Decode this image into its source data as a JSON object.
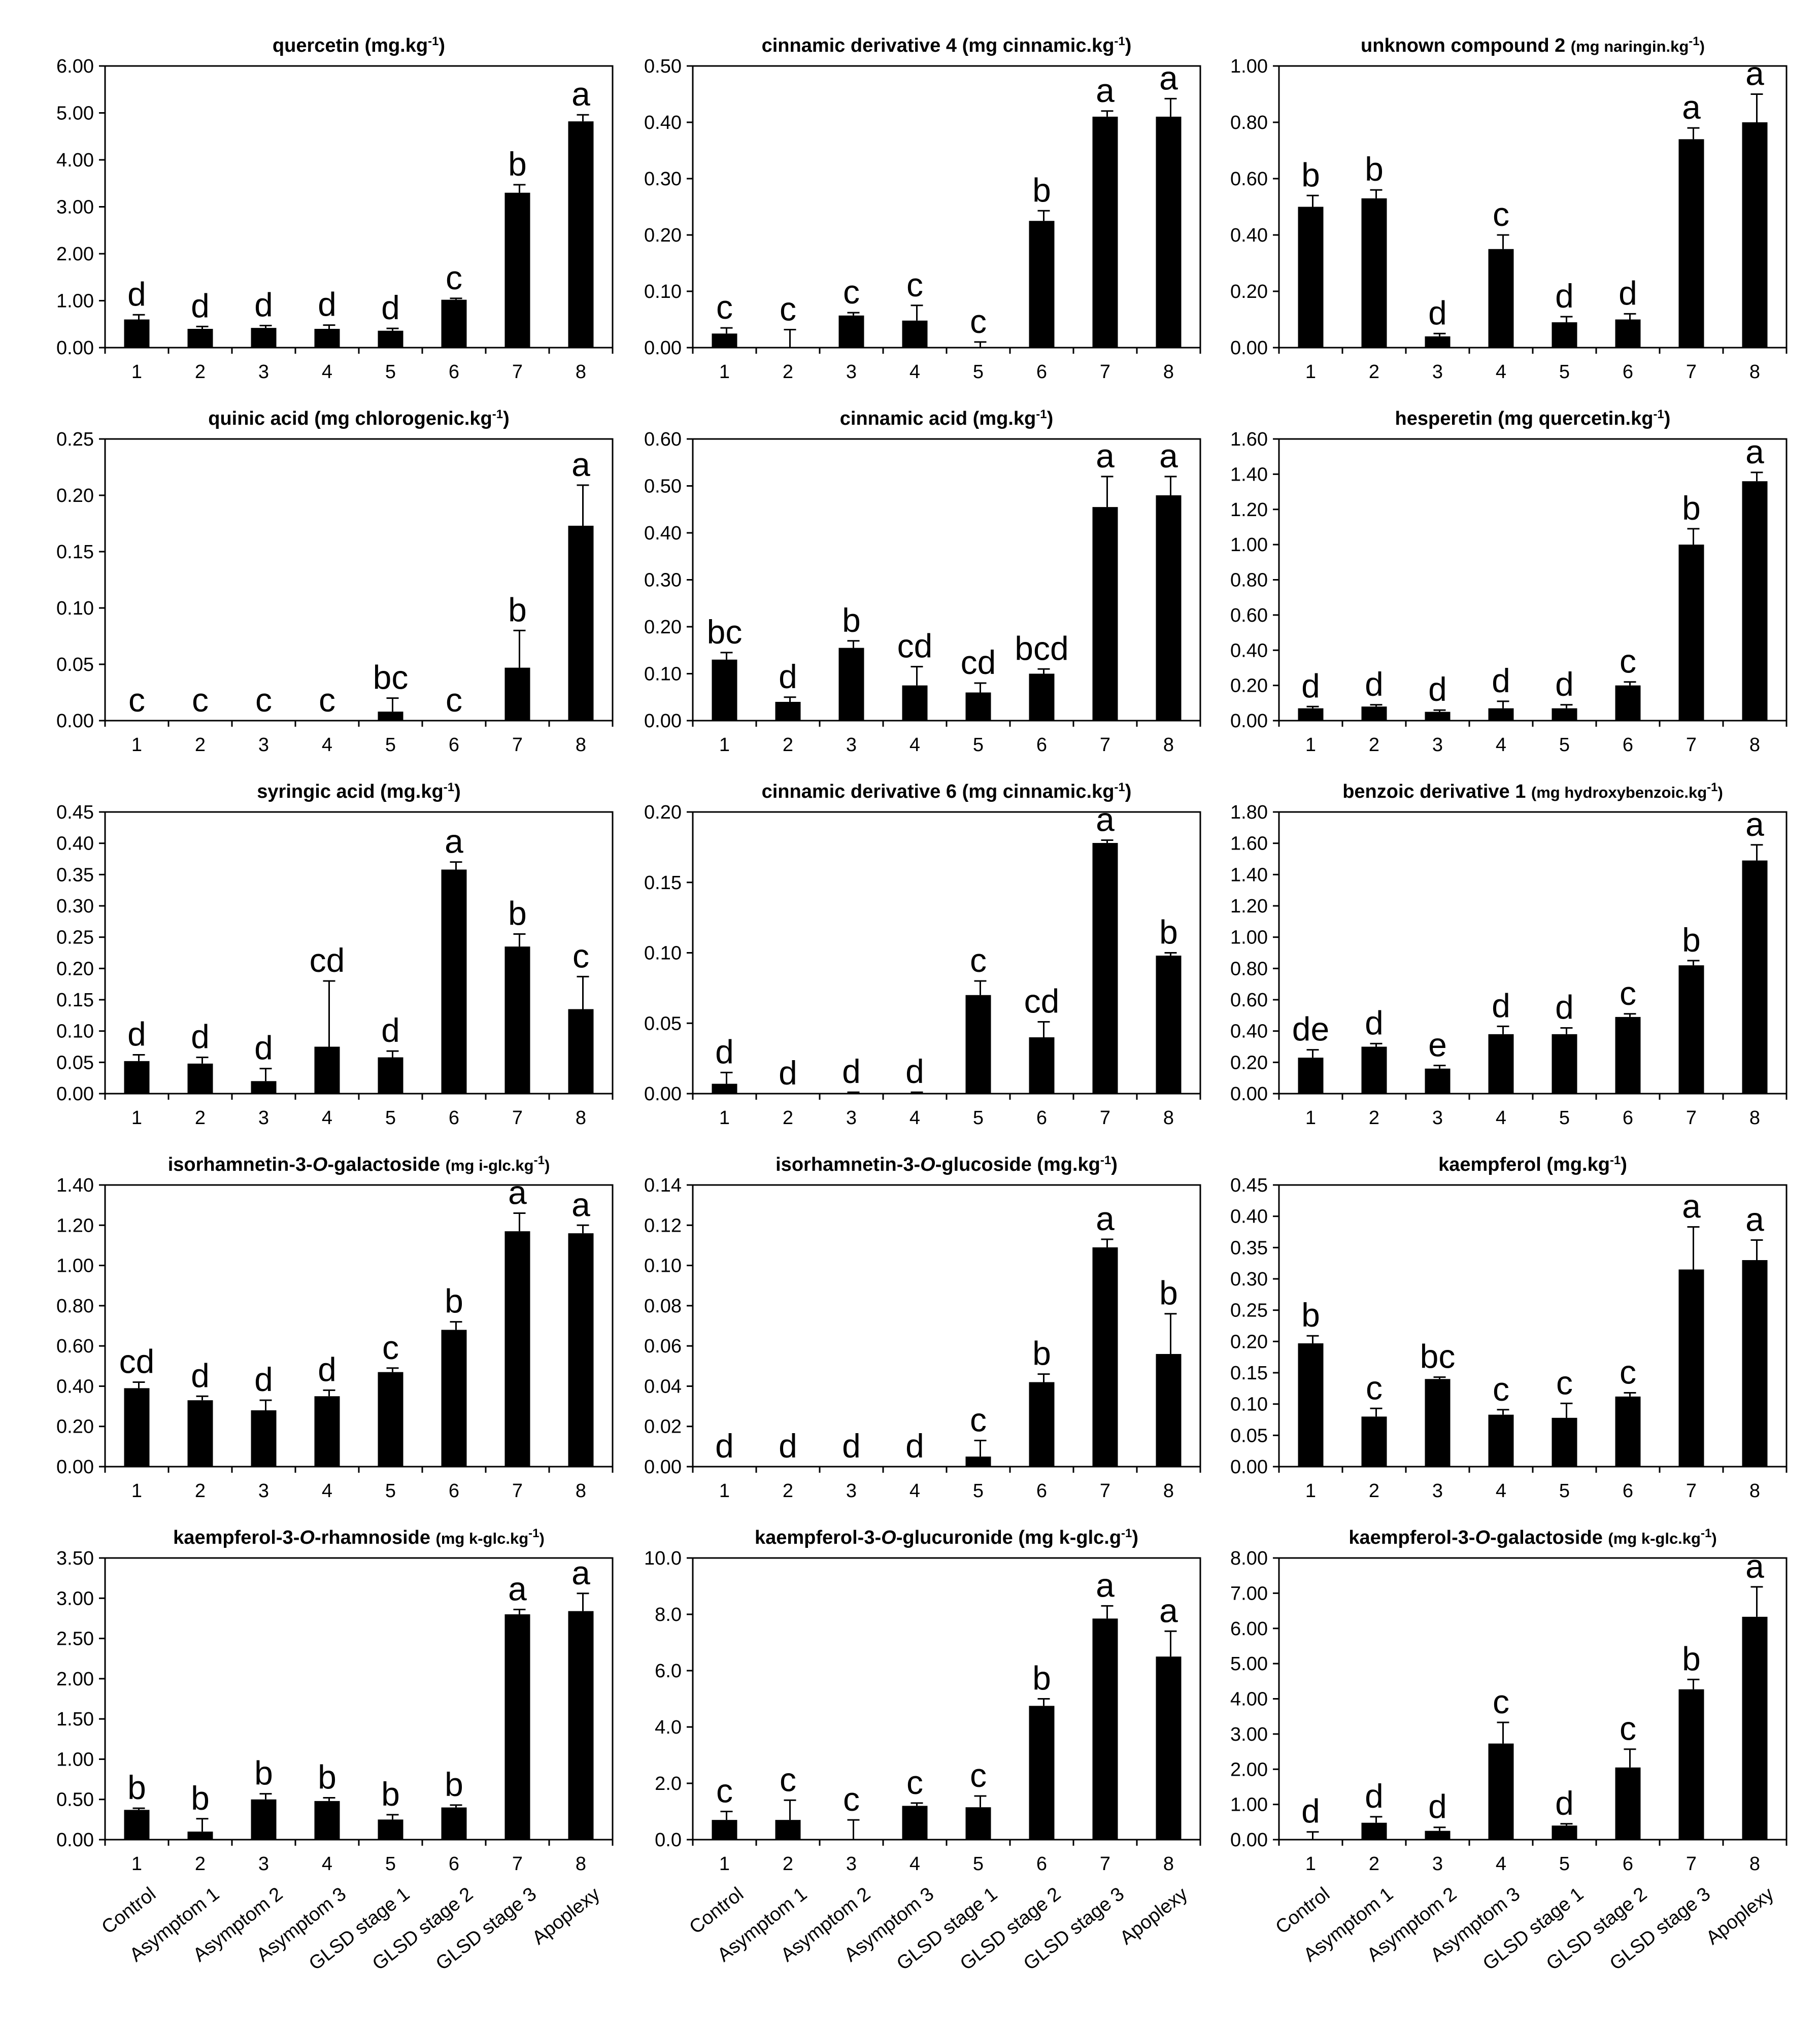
{
  "figure": {
    "group_labels": [
      "Control",
      "Asymptom 1",
      "Asymptom 2",
      "Asymptom 3",
      "GLSD stage 1",
      "GLSD stage 2",
      "GLSD stage 3",
      "Apoplexy"
    ]
  },
  "chart_data": [
    {
      "type": "bar",
      "title": "quercetin",
      "unit": "(mg.kg-1)",
      "categories": [
        "1",
        "2",
        "3",
        "4",
        "5",
        "6",
        "7",
        "8"
      ],
      "values": [
        0.6,
        0.4,
        0.42,
        0.4,
        0.36,
        1.02,
        3.3,
        4.82
      ],
      "errors": [
        0.1,
        0.05,
        0.05,
        0.08,
        0.05,
        0.03,
        0.17,
        0.14
      ],
      "letters": [
        "d",
        "d",
        "d",
        "d",
        "d",
        "c",
        "b",
        "a"
      ],
      "yticks": [
        "0.00",
        "1.00",
        "2.00",
        "3.00",
        "4.00",
        "5.00",
        "6.00"
      ],
      "ylim": [
        0,
        6
      ]
    },
    {
      "type": "bar",
      "title": "cinnamic derivative 4",
      "unit": "(mg cinnamic.kg-1)",
      "categories": [
        "1",
        "2",
        "3",
        "4",
        "5",
        "6",
        "7",
        "8"
      ],
      "values": [
        0.025,
        0.0,
        0.057,
        0.048,
        0.0,
        0.225,
        0.41,
        0.41
      ],
      "errors": [
        0.01,
        0.032,
        0.005,
        0.027,
        0.01,
        0.018,
        0.01,
        0.032
      ],
      "letters": [
        "c",
        "c",
        "c",
        "c",
        "c",
        "b",
        "a",
        "a"
      ],
      "yticks": [
        "0.00",
        "0.10",
        "0.20",
        "0.30",
        "0.40",
        "0.50"
      ],
      "ylim": [
        0,
        0.5
      ]
    },
    {
      "type": "bar",
      "title": "unknown compound 2",
      "unit": "(mg naringin.kg-1)",
      "unit_small": true,
      "categories": [
        "1",
        "2",
        "3",
        "4",
        "5",
        "6",
        "7",
        "8"
      ],
      "values": [
        0.5,
        0.53,
        0.04,
        0.35,
        0.09,
        0.1,
        0.74,
        0.8
      ],
      "errors": [
        0.04,
        0.03,
        0.01,
        0.05,
        0.02,
        0.02,
        0.04,
        0.1
      ],
      "letters": [
        "b",
        "b",
        "d",
        "c",
        "d",
        "d",
        "a",
        "a"
      ],
      "yticks": [
        "0.00",
        "0.20",
        "0.40",
        "0.60",
        "0.80",
        "1.00"
      ],
      "ylim": [
        0,
        1
      ]
    },
    {
      "type": "bar",
      "title": "quinic acid",
      "unit": "(mg chlorogenic.kg-1)",
      "categories": [
        "1",
        "2",
        "3",
        "4",
        "5",
        "6",
        "7",
        "8"
      ],
      "values": [
        0,
        0,
        0,
        0,
        0.008,
        0,
        0.047,
        0.173
      ],
      "errors": [
        0,
        0,
        0,
        0,
        0.012,
        0,
        0.033,
        0.036
      ],
      "letters": [
        "c",
        "c",
        "c",
        "c",
        "bc",
        "c",
        "b",
        "a"
      ],
      "yticks": [
        "0.00",
        "0.05",
        "0.10",
        "0.15",
        "0.20",
        "0.25"
      ],
      "ylim": [
        0,
        0.25
      ]
    },
    {
      "type": "bar",
      "title": "cinnamic acid",
      "unit": "(mg.kg-1)",
      "categories": [
        "1",
        "2",
        "3",
        "4",
        "5",
        "6",
        "7",
        "8"
      ],
      "values": [
        0.13,
        0.04,
        0.155,
        0.075,
        0.06,
        0.1,
        0.455,
        0.48
      ],
      "errors": [
        0.015,
        0.01,
        0.015,
        0.04,
        0.02,
        0.01,
        0.065,
        0.04
      ],
      "letters": [
        "bc",
        "d",
        "b",
        "cd",
        "cd",
        "bcd",
        "a",
        "a"
      ],
      "yticks": [
        "0.00",
        "0.10",
        "0.20",
        "0.30",
        "0.40",
        "0.50",
        "0.60"
      ],
      "ylim": [
        0,
        0.6
      ]
    },
    {
      "type": "bar",
      "title": "hesperetin",
      "unit": "(mg quercetin.kg-1)",
      "categories": [
        "1",
        "2",
        "3",
        "4",
        "5",
        "6",
        "7",
        "8"
      ],
      "values": [
        0.07,
        0.08,
        0.05,
        0.07,
        0.07,
        0.2,
        1.0,
        1.36
      ],
      "errors": [
        0.01,
        0.01,
        0.01,
        0.04,
        0.02,
        0.02,
        0.09,
        0.05
      ],
      "letters": [
        "d",
        "d",
        "d",
        "d",
        "d",
        "c",
        "b",
        "a"
      ],
      "yticks": [
        "0.00",
        "0.20",
        "0.40",
        "0.60",
        "0.80",
        "1.00",
        "1.20",
        "1.40",
        "1.60"
      ],
      "ylim": [
        0,
        1.6
      ]
    },
    {
      "type": "bar",
      "title": "syringic acid",
      "unit": "(mg.kg-1)",
      "categories": [
        "1",
        "2",
        "3",
        "4",
        "5",
        "6",
        "7",
        "8"
      ],
      "values": [
        0.052,
        0.048,
        0.02,
        0.075,
        0.058,
        0.358,
        0.235,
        0.135
      ],
      "errors": [
        0.01,
        0.01,
        0.02,
        0.105,
        0.01,
        0.012,
        0.02,
        0.052
      ],
      "letters": [
        "d",
        "d",
        "d",
        "cd",
        "d",
        "a",
        "b",
        "c"
      ],
      "yticks": [
        "0.00",
        "0.05",
        "0.10",
        "0.15",
        "0.20",
        "0.25",
        "0.30",
        "0.35",
        "0.40",
        "0.45"
      ],
      "ylim": [
        0,
        0.45
      ]
    },
    {
      "type": "bar",
      "title": "cinnamic derivative 6",
      "unit": "(mg cinnamic.kg-1)",
      "categories": [
        "1",
        "2",
        "3",
        "4",
        "5",
        "6",
        "7",
        "8"
      ],
      "values": [
        0.007,
        0.0,
        0.0,
        0.0,
        0.07,
        0.04,
        0.178,
        0.098
      ],
      "errors": [
        0.008,
        0.0,
        0.001,
        0.001,
        0.01,
        0.011,
        0.002,
        0.002
      ],
      "letters": [
        "d",
        "d",
        "d",
        "d",
        "c",
        "cd",
        "a",
        "b"
      ],
      "yticks": [
        "0.00",
        "0.05",
        "0.10",
        "0.15",
        "0.20"
      ],
      "ylim": [
        0,
        0.2
      ]
    },
    {
      "type": "bar",
      "title": "benzoic derivative 1",
      "unit": "(mg hydroxybenzoic.kg-1)",
      "unit_small": true,
      "categories": [
        "1",
        "2",
        "3",
        "4",
        "5",
        "6",
        "7",
        "8"
      ],
      "values": [
        0.23,
        0.3,
        0.16,
        0.38,
        0.38,
        0.49,
        0.82,
        1.49
      ],
      "errors": [
        0.05,
        0.02,
        0.02,
        0.05,
        0.04,
        0.02,
        0.03,
        0.1
      ],
      "letters": [
        "de",
        "d",
        "e",
        "d",
        "d",
        "c",
        "b",
        "a"
      ],
      "yticks": [
        "0.00",
        "0.20",
        "0.40",
        "0.60",
        "0.80",
        "1.00",
        "1.20",
        "1.40",
        "1.60",
        "1.80"
      ],
      "ylim": [
        0,
        1.8
      ]
    },
    {
      "type": "bar",
      "title": "isorhamnetin-3-O-galactoside",
      "title_parts": [
        "isorhamnetin-3-",
        "O",
        "-galactoside"
      ],
      "unit": "(mg i-glc.kg-1)",
      "unit_small": true,
      "categories": [
        "1",
        "2",
        "3",
        "4",
        "5",
        "6",
        "7",
        "8"
      ],
      "values": [
        0.39,
        0.33,
        0.28,
        0.35,
        0.47,
        0.68,
        1.17,
        1.16
      ],
      "errors": [
        0.03,
        0.02,
        0.05,
        0.03,
        0.02,
        0.04,
        0.09,
        0.04
      ],
      "letters": [
        "cd",
        "d",
        "d",
        "d",
        "c",
        "b",
        "a",
        "a"
      ],
      "yticks": [
        "0.00",
        "0.20",
        "0.40",
        "0.60",
        "0.80",
        "1.00",
        "1.20",
        "1.40"
      ],
      "ylim": [
        0,
        1.4
      ]
    },
    {
      "type": "bar",
      "title": "isorhamnetin-3-O-glucoside",
      "title_parts": [
        "isorhamnetin-3-",
        "O",
        "-glucoside"
      ],
      "unit": "(mg.kg-1)",
      "categories": [
        "1",
        "2",
        "3",
        "4",
        "5",
        "6",
        "7",
        "8"
      ],
      "values": [
        0,
        0,
        0,
        0,
        0.005,
        0.042,
        0.109,
        0.056
      ],
      "errors": [
        0,
        0,
        0,
        0,
        0.008,
        0.004,
        0.004,
        0.02
      ],
      "letters": [
        "d",
        "d",
        "d",
        "d",
        "c",
        "b",
        "a",
        "b"
      ],
      "yticks": [
        "0.00",
        "0.02",
        "0.04",
        "0.06",
        "0.08",
        "0.10",
        "0.12",
        "0.14"
      ],
      "ylim": [
        0,
        0.14
      ]
    },
    {
      "type": "bar",
      "title": "kaempferol",
      "unit": "(mg.kg-1)",
      "categories": [
        "1",
        "2",
        "3",
        "4",
        "5",
        "6",
        "7",
        "8"
      ],
      "values": [
        0.197,
        0.08,
        0.14,
        0.083,
        0.078,
        0.112,
        0.315,
        0.33
      ],
      "errors": [
        0.012,
        0.013,
        0.003,
        0.008,
        0.023,
        0.006,
        0.068,
        0.032
      ],
      "letters": [
        "b",
        "c",
        "bc",
        "c",
        "c",
        "c",
        "a",
        "a"
      ],
      "yticks": [
        "0.00",
        "0.05",
        "0.10",
        "0.15",
        "0.20",
        "0.25",
        "0.30",
        "0.35",
        "0.40",
        "0.45"
      ],
      "ylim": [
        0,
        0.45
      ]
    },
    {
      "type": "bar",
      "title": "kaempferol-3-O-rhamnoside",
      "title_parts": [
        "kaempferol-3-",
        "O",
        "-rhamnoside"
      ],
      "unit": "(mg k-glc.kg-1)",
      "unit_small": true,
      "categories": [
        "1",
        "2",
        "3",
        "4",
        "5",
        "6",
        "7",
        "8"
      ],
      "values": [
        0.37,
        0.1,
        0.5,
        0.48,
        0.25,
        0.4,
        2.8,
        2.84
      ],
      "errors": [
        0.02,
        0.16,
        0.07,
        0.04,
        0.06,
        0.03,
        0.06,
        0.22
      ],
      "letters": [
        "b",
        "b",
        "b",
        "b",
        "b",
        "b",
        "a",
        "a"
      ],
      "yticks": [
        "0.00",
        "0.50",
        "1.00",
        "1.50",
        "2.00",
        "2.50",
        "3.00",
        "3.50"
      ],
      "ylim": [
        0,
        3.5
      ]
    },
    {
      "type": "bar",
      "title": "kaempferol-3-O-glucuronide",
      "title_parts": [
        "kaempferol-3-",
        "O",
        "-glucuronide"
      ],
      "unit": "(mg k-glc.g-1)",
      "categories": [
        "1",
        "2",
        "3",
        "4",
        "5",
        "6",
        "7",
        "8"
      ],
      "values": [
        0.7,
        0.7,
        0.0,
        1.2,
        1.15,
        4.75,
        7.85,
        6.5
      ],
      "errors": [
        0.3,
        0.7,
        0.7,
        0.1,
        0.4,
        0.25,
        0.45,
        0.9
      ],
      "letters": [
        "c",
        "c",
        "c",
        "c",
        "c",
        "b",
        "a",
        "a"
      ],
      "yticks": [
        "0.0",
        "2.0",
        "4.0",
        "6.0",
        "8.0",
        "10.0"
      ],
      "ylim": [
        0,
        10
      ]
    },
    {
      "type": "bar",
      "title": "kaempferol-3-O-galactoside",
      "title_parts": [
        "kaempferol-3-",
        "O",
        "-galactoside"
      ],
      "unit": "(mg k-glc.kg-1)",
      "unit_small": true,
      "categories": [
        "1",
        "2",
        "3",
        "4",
        "5",
        "6",
        "7",
        "8"
      ],
      "values": [
        0.0,
        0.48,
        0.25,
        2.73,
        0.4,
        2.05,
        4.27,
        6.33
      ],
      "errors": [
        0.22,
        0.17,
        0.1,
        0.6,
        0.05,
        0.52,
        0.28,
        0.85
      ],
      "letters": [
        "d",
        "d",
        "d",
        "c",
        "d",
        "c",
        "b",
        "a"
      ],
      "yticks": [
        "0.00",
        "1.00",
        "2.00",
        "3.00",
        "4.00",
        "5.00",
        "6.00",
        "7.00",
        "8.00"
      ],
      "ylim": [
        0,
        8
      ]
    }
  ]
}
